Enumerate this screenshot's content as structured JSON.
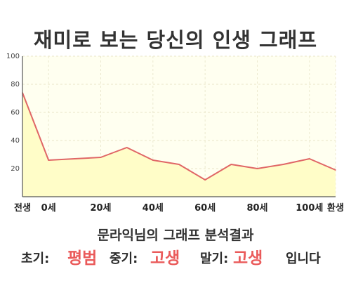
{
  "title": "재미로 보는 당신의 인생 그래프",
  "chart_data": {
    "type": "area",
    "title": "재미로 보는 당신의 인생 그래프",
    "x": [
      -10,
      0,
      10,
      20,
      30,
      40,
      50,
      60,
      70,
      80,
      90,
      100,
      110
    ],
    "values": [
      74,
      26,
      27,
      28,
      35,
      26,
      23,
      12,
      23,
      20,
      23,
      27,
      19
    ],
    "ylim": [
      0,
      100
    ],
    "y_ticks": [
      20,
      40,
      60,
      80,
      100
    ],
    "y_tick_labels": [
      "20",
      "40",
      "60",
      "80",
      "100"
    ],
    "x_tick_labels": [
      {
        "x": -10,
        "label": "전생"
      },
      {
        "x": 0,
        "label": "0세"
      },
      {
        "x": 20,
        "label": "20세"
      },
      {
        "x": 40,
        "label": "40세"
      },
      {
        "x": 60,
        "label": "60세"
      },
      {
        "x": 80,
        "label": "80세"
      },
      {
        "x": 100,
        "label": "100세"
      },
      {
        "x": 110,
        "label": "환생"
      }
    ],
    "grid": true,
    "colors": {
      "line": "#e06666",
      "fill": "#fffdc8",
      "plot_bg": "#fffff0"
    }
  },
  "result": {
    "heading": "문라익님의 그래프 분석결과",
    "early_label": "초기:",
    "early_value": "평범",
    "middle_label": "중기:",
    "middle_value": "고생",
    "late_label": "말기:",
    "late_value": "고생",
    "suffix": "입니다"
  }
}
